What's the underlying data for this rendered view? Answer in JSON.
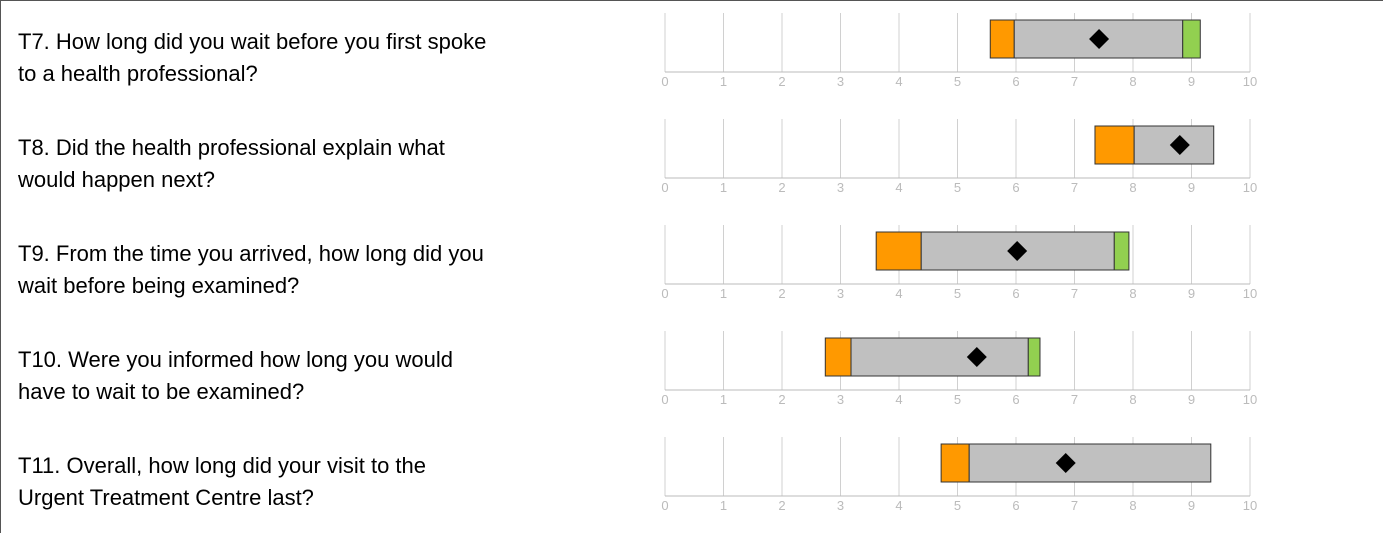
{
  "chart_data": [
    {
      "type": "range",
      "title": [
        "T7. How long did you wait before you first spoke",
        "to a health professional?"
      ],
      "xlim": [
        0,
        10
      ],
      "xticks": [
        0,
        1,
        2,
        3,
        4,
        5,
        6,
        7,
        8,
        9,
        10
      ],
      "grid": true,
      "bars": [
        {
          "color": "#ff9900",
          "from": 5.56,
          "to": 5.97
        },
        {
          "color": "#c0c0c0",
          "from": 5.97,
          "to": 8.85
        },
        {
          "color": "#92d050",
          "from": 8.85,
          "to": 9.15
        }
      ],
      "score": 7.42
    },
    {
      "type": "range",
      "title": [
        "T8. Did the health professional explain what",
        "would happen next?"
      ],
      "xlim": [
        0,
        10
      ],
      "xticks": [
        0,
        1,
        2,
        3,
        4,
        5,
        6,
        7,
        8,
        9,
        10
      ],
      "grid": true,
      "bars": [
        {
          "color": "#ff9900",
          "from": 7.35,
          "to": 8.02
        },
        {
          "color": "#c0c0c0",
          "from": 8.02,
          "to": 9.38
        }
      ],
      "score": 8.8
    },
    {
      "type": "range",
      "title": [
        "T9. From the time you arrived, how long did you",
        "wait before being examined?"
      ],
      "xlim": [
        0,
        10
      ],
      "xticks": [
        0,
        1,
        2,
        3,
        4,
        5,
        6,
        7,
        8,
        9,
        10
      ],
      "grid": true,
      "bars": [
        {
          "color": "#ff9900",
          "from": 3.61,
          "to": 4.38
        },
        {
          "color": "#c0c0c0",
          "from": 4.38,
          "to": 7.68
        },
        {
          "color": "#92d050",
          "from": 7.68,
          "to": 7.93
        }
      ],
      "score": 6.02
    },
    {
      "type": "range",
      "title": [
        "T10. Were you informed how long you would",
        "have to wait to be examined?"
      ],
      "xlim": [
        0,
        10
      ],
      "xticks": [
        0,
        1,
        2,
        3,
        4,
        5,
        6,
        7,
        8,
        9,
        10
      ],
      "grid": true,
      "bars": [
        {
          "color": "#ff9900",
          "from": 2.74,
          "to": 3.18
        },
        {
          "color": "#c0c0c0",
          "from": 3.18,
          "to": 6.21
        },
        {
          "color": "#92d050",
          "from": 6.21,
          "to": 6.41
        }
      ],
      "score": 5.33
    },
    {
      "type": "range",
      "title": [
        "T11. Overall, how long did your visit to the",
        "Urgent Treatment Centre last?"
      ],
      "xlim": [
        0,
        10
      ],
      "xticks": [
        0,
        1,
        2,
        3,
        4,
        5,
        6,
        7,
        8,
        9,
        10
      ],
      "grid": true,
      "bars": [
        {
          "color": "#ff9900",
          "from": 4.72,
          "to": 5.2
        },
        {
          "color": "#c0c0c0",
          "from": 5.2,
          "to": 9.33
        }
      ],
      "score": 6.85
    }
  ]
}
